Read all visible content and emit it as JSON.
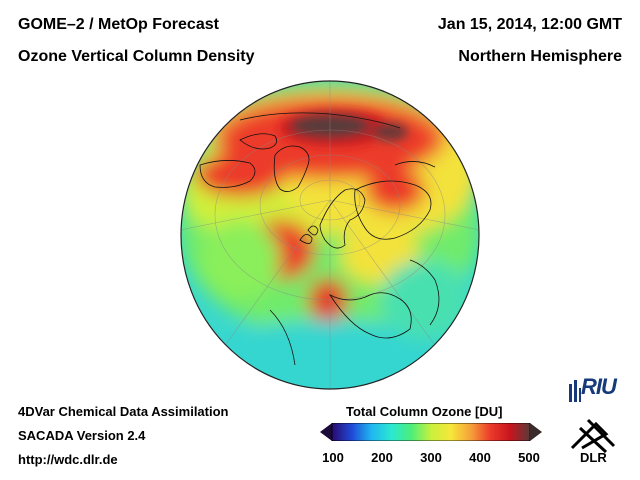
{
  "header": {
    "title_line1": "GOME–2 / MetOp Forecast",
    "title_line2": "Ozone Vertical Column Density",
    "date": "Jan 15, 2014, 12:00 GMT",
    "region": "Northern Hemisphere"
  },
  "footer": {
    "method": "4DVar Chemical Data Assimilation",
    "version": "SACADA Version 2.4",
    "url": "http://wdc.dlr.de"
  },
  "colorbar": {
    "title": "Total Column Ozone [DU]",
    "ticks": [
      "100",
      "200",
      "300",
      "400",
      "500"
    ],
    "range": [
      100,
      500
    ],
    "colors": [
      "#2a0a6e",
      "#1f49d8",
      "#20b7f0",
      "#2ae8d2",
      "#4cee7a",
      "#c8f03c",
      "#f7e73a",
      "#f5a23a",
      "#ec3a2a",
      "#c8151e",
      "#5a3a3a"
    ]
  },
  "logos": {
    "riu": "RIU",
    "dlr": "DLR"
  },
  "map": {
    "projection": "orthographic",
    "hemisphere": "Northern Hemisphere",
    "ocean_color": "#3ad8cc"
  }
}
